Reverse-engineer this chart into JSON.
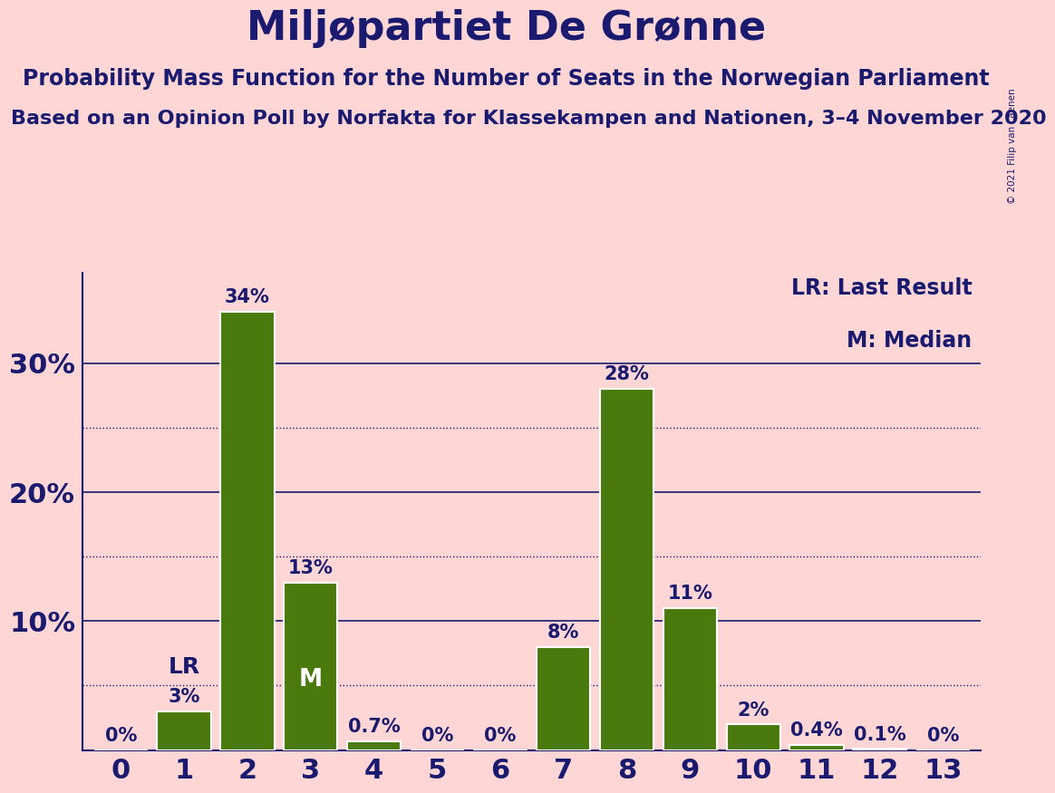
{
  "title": "Miljøpartiet De Grønne",
  "subtitle": "Probability Mass Function for the Number of Seats in the Norwegian Parliament",
  "source": "Based on an Opinion Poll by Norfakta for Klassekampen and Nationen, 3–4 November 2020",
  "copyright": "© 2021 Filip van Laenen",
  "seats": [
    0,
    1,
    2,
    3,
    4,
    5,
    6,
    7,
    8,
    9,
    10,
    11,
    12,
    13
  ],
  "probabilities": [
    0.0,
    3.0,
    34.0,
    13.0,
    0.7,
    0.0,
    0.0,
    8.0,
    28.0,
    11.0,
    2.0,
    0.4,
    0.1,
    0.0
  ],
  "bar_color": "#4a7a0e",
  "bar_edge_color": "#ffffff",
  "bg_color": "#ffd6d6",
  "text_color": "#1a1a6e",
  "title_fontsize": 32,
  "subtitle_fontsize": 17,
  "source_fontsize": 16,
  "axis_label_fontsize": 22,
  "bar_label_fontsize": 15,
  "legend_fontsize": 17,
  "lr_seat": 1,
  "median_seat": 3,
  "yticks_solid": [
    10,
    20,
    30
  ],
  "yticks_dotted": [
    5,
    15,
    25
  ],
  "ylim": [
    0,
    37
  ],
  "legend_text": [
    "LR: Last Result",
    "M: Median"
  ]
}
